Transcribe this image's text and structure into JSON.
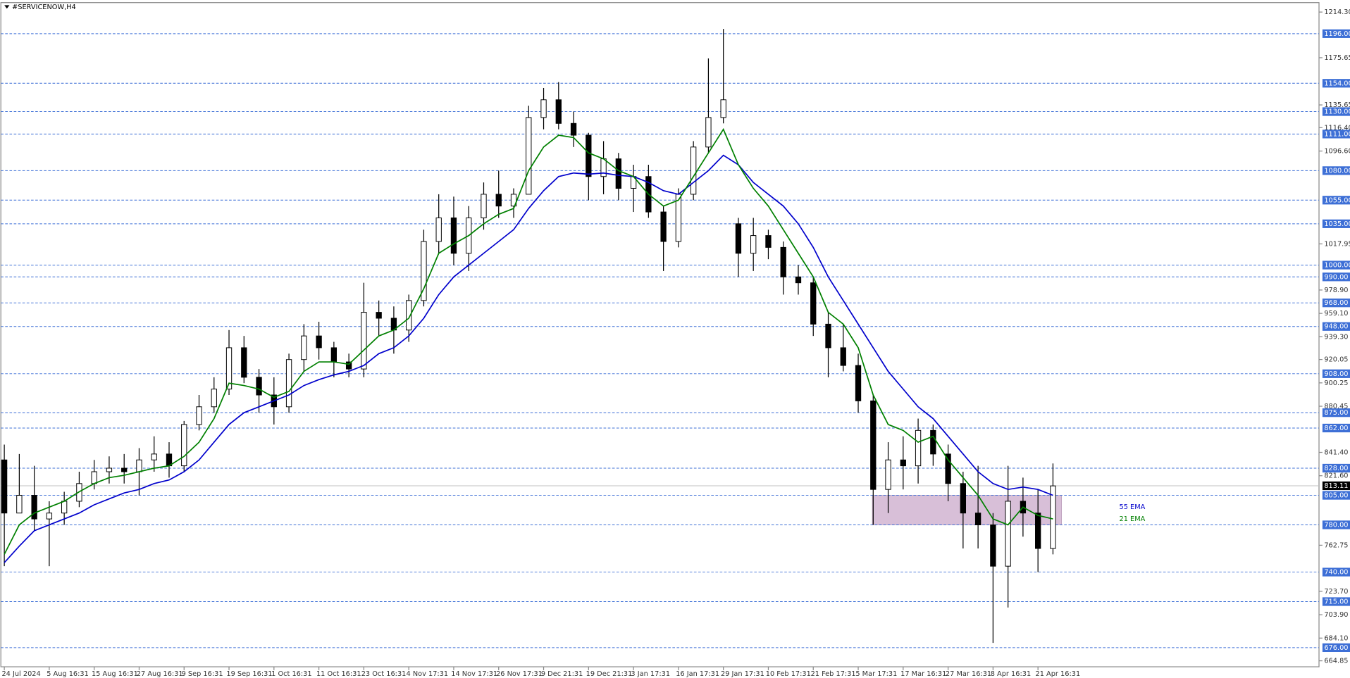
{
  "chart_data": {
    "type": "candlestick",
    "title": "#SERVICENOW,H4",
    "categories": [
      "24 Jul 2024",
      null,
      null,
      "5 Aug 16:31",
      null,
      null,
      "15 Aug 16:31",
      null,
      null,
      "27 Aug 16:31",
      null,
      null,
      "9 Sep 16:31",
      null,
      null,
      "19 Sep 16:31",
      null,
      null,
      "1 Oct 16:31",
      null,
      null,
      "11 Oct 16:31",
      null,
      null,
      "23 Oct 16:31",
      null,
      null,
      "4 Nov 17:31",
      null,
      null,
      "14 Nov 17:31",
      null,
      null,
      "26 Nov 17:31",
      null,
      null,
      "9 Dec 21:31",
      null,
      null,
      "19 Dec 21:31",
      null,
      null,
      "3 Jan 17:31",
      null,
      null,
      "16 Jan 17:31",
      null,
      null,
      "29 Jan 17:31",
      null,
      null,
      "10 Feb 17:31",
      null,
      null,
      "21 Feb 17:31",
      null,
      null,
      "5 Mar 17:31",
      null,
      null,
      "17 Mar 16:31",
      null,
      null,
      "27 Mar 16:31",
      null,
      null,
      "8 Apr 16:31",
      null,
      null,
      "21 Apr 16:31",
      null
    ],
    "candles": {
      "open": [
        835,
        790,
        805,
        785,
        790,
        800,
        815,
        825,
        828,
        825,
        835,
        840,
        830,
        865,
        880,
        895,
        930,
        905,
        890,
        880,
        920,
        940,
        930,
        918,
        912,
        960,
        955,
        945,
        970,
        1020,
        1040,
        1010,
        1040,
        1060,
        1050,
        1060,
        1125,
        1140,
        1120,
        1110,
        1075,
        1090,
        1065,
        1075,
        1045,
        1020,
        1060,
        1100,
        1125,
        1035,
        1010,
        1025,
        1015,
        990,
        985,
        950,
        930,
        915,
        885,
        810,
        835,
        830,
        860,
        840,
        815,
        790,
        780,
        745,
        800,
        790,
        760
      ],
      "high": [
        848,
        840,
        830,
        800,
        808,
        825,
        835,
        838,
        840,
        845,
        855,
        850,
        868,
        890,
        905,
        945,
        940,
        912,
        905,
        925,
        950,
        952,
        935,
        925,
        985,
        970,
        965,
        975,
        1030,
        1060,
        1058,
        1050,
        1070,
        1080,
        1065,
        1135,
        1150,
        1155,
        1130,
        1112,
        1105,
        1095,
        1085,
        1085,
        1050,
        1065,
        1105,
        1175,
        1200,
        1040,
        1040,
        1030,
        1020,
        1000,
        990,
        960,
        950,
        925,
        890,
        850,
        855,
        870,
        865,
        848,
        825,
        830,
        790,
        830,
        820,
        810,
        832
      ],
      "low": [
        745,
        790,
        775,
        745,
        780,
        795,
        810,
        815,
        815,
        805,
        825,
        820,
        825,
        860,
        875,
        890,
        900,
        875,
        865,
        875,
        910,
        920,
        905,
        905,
        905,
        940,
        925,
        935,
        965,
        1010,
        1000,
        995,
        1030,
        1040,
        1040,
        1060,
        1115,
        1115,
        1100,
        1055,
        1060,
        1055,
        1045,
        1040,
        995,
        1015,
        1055,
        1095,
        1120,
        990,
        995,
        1005,
        975,
        975,
        940,
        905,
        910,
        875,
        780,
        790,
        810,
        815,
        830,
        800,
        760,
        760,
        680,
        710,
        770,
        740,
        755
      ],
      "close": [
        790,
        805,
        785,
        790,
        800,
        815,
        825,
        828,
        825,
        835,
        840,
        830,
        865,
        880,
        895,
        930,
        905,
        890,
        880,
        920,
        940,
        930,
        918,
        912,
        960,
        955,
        945,
        970,
        1020,
        1040,
        1010,
        1040,
        1060,
        1050,
        1060,
        1125,
        1140,
        1120,
        1110,
        1075,
        1090,
        1065,
        1075,
        1045,
        1020,
        1060,
        1100,
        1125,
        1140,
        1010,
        1025,
        1015,
        990,
        985,
        950,
        930,
        915,
        885,
        810,
        835,
        830,
        860,
        840,
        815,
        790,
        780,
        745,
        800,
        790,
        760,
        813
      ]
    },
    "up_color": "#ffffff",
    "down_color": "#000000",
    "lines": [
      {
        "name": "55 EMA",
        "color": "#0000cc",
        "values": [
          748,
          762,
          775,
          780,
          785,
          790,
          797,
          802,
          807,
          810,
          815,
          818,
          825,
          835,
          850,
          865,
          875,
          880,
          885,
          890,
          898,
          903,
          907,
          910,
          915,
          925,
          930,
          940,
          955,
          975,
          990,
          1000,
          1010,
          1020,
          1030,
          1048,
          1063,
          1075,
          1078,
          1077,
          1078,
          1076,
          1075,
          1070,
          1063,
          1060,
          1070,
          1080,
          1093,
          1085,
          1070,
          1060,
          1050,
          1035,
          1015,
          990,
          970,
          950,
          930,
          910,
          895,
          880,
          870,
          855,
          840,
          825,
          815,
          810,
          812,
          810,
          805
        ]
      },
      {
        "name": "21 EMA",
        "color": "#008000",
        "values": [
          755,
          780,
          790,
          795,
          800,
          808,
          815,
          820,
          822,
          825,
          828,
          830,
          838,
          850,
          870,
          900,
          898,
          895,
          888,
          893,
          910,
          918,
          918,
          916,
          928,
          940,
          945,
          955,
          980,
          1010,
          1018,
          1025,
          1035,
          1043,
          1048,
          1080,
          1100,
          1110,
          1108,
          1095,
          1090,
          1080,
          1075,
          1060,
          1050,
          1055,
          1075,
          1095,
          1115,
          1085,
          1065,
          1050,
          1030,
          1010,
          990,
          960,
          950,
          930,
          890,
          865,
          860,
          850,
          855,
          835,
          820,
          805,
          785,
          780,
          795,
          788,
          785
        ]
      }
    ],
    "levels": [
      {
        "value": 1196,
        "label": "1196.00"
      },
      {
        "value": 1154,
        "label": "1154.00"
      },
      {
        "value": 1130,
        "label": "1130.00"
      },
      {
        "value": 1111,
        "label": "1111.00"
      },
      {
        "value": 1080,
        "label": "1080.00"
      },
      {
        "value": 1055,
        "label": "1055.00"
      },
      {
        "value": 1035,
        "label": "1035.00"
      },
      {
        "value": 1000,
        "label": "1000.00"
      },
      {
        "value": 990,
        "label": "990.00"
      },
      {
        "value": 968,
        "label": "968.00"
      },
      {
        "value": 948,
        "label": "948.00"
      },
      {
        "value": 908,
        "label": "908.00"
      },
      {
        "value": 875,
        "label": "875.00"
      },
      {
        "value": 862,
        "label": "862.00"
      },
      {
        "value": 828,
        "label": "828.00"
      },
      {
        "value": 805,
        "label": "805.00"
      },
      {
        "value": 780,
        "label": "780.00"
      },
      {
        "value": 740,
        "label": "740.00"
      },
      {
        "value": 715,
        "label": "715.00"
      },
      {
        "value": 676,
        "label": "676.00"
      }
    ],
    "level_color": "#3d6fd6",
    "current_price": {
      "value": 813.11,
      "label": "813.11"
    },
    "zone": [
      780,
      805
    ],
    "zone_color": "#d8bfd8",
    "ylim": [
      659.8,
      1222.3
    ],
    "yticks": [
      {
        "value": 1214.3,
        "label": "1214.30"
      },
      {
        "value": 1175.65,
        "label": "1175.65"
      },
      {
        "value": 1135.65,
        "label": "1135.65"
      },
      {
        "value": 1116.4,
        "label": "1116.40"
      },
      {
        "value": 1096.6,
        "label": "1096.60"
      },
      {
        "value": 1017.95,
        "label": "1017.95"
      },
      {
        "value": 978.9,
        "label": "978.90"
      },
      {
        "value": 959.1,
        "label": "959.10"
      },
      {
        "value": 939.3,
        "label": "939.30"
      },
      {
        "value": 920.05,
        "label": "920.05"
      },
      {
        "value": 900.25,
        "label": "900.25"
      },
      {
        "value": 880.45,
        "label": "880.45"
      },
      {
        "value": 841.4,
        "label": "841.40"
      },
      {
        "value": 821.6,
        "label": "821.60"
      },
      {
        "value": 762.75,
        "label": "762.75"
      },
      {
        "value": 723.7,
        "label": "723.70"
      },
      {
        "value": 703.9,
        "label": "703.90"
      },
      {
        "value": 684.1,
        "label": "684.10"
      },
      {
        "value": 664.85,
        "label": "664.85"
      }
    ]
  }
}
